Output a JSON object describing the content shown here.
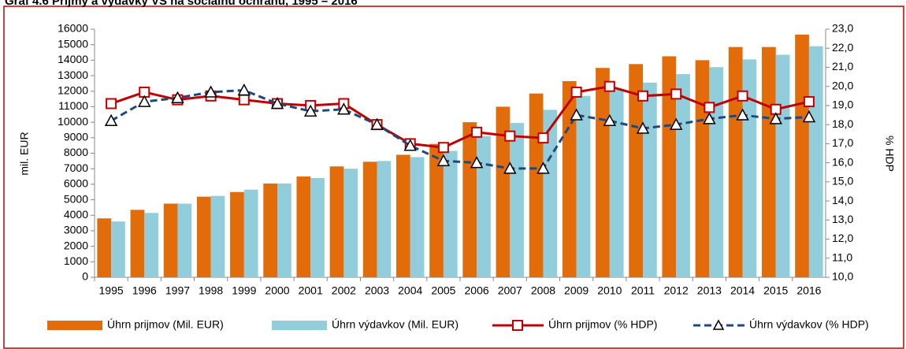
{
  "chart_data": {
    "type": "bar-line",
    "title": "Graf 4.6 Príjmy a výdavky VS na sociálnu ochranu, 1995 – 2016",
    "ylabel": "mil. EUR",
    "y2label": "% HDP",
    "categories": [
      "1995",
      "1996",
      "1997",
      "1998",
      "1999",
      "2000",
      "2001",
      "2002",
      "2003",
      "2004",
      "2005",
      "2006",
      "2007",
      "2008",
      "2009",
      "2010",
      "2011",
      "2012",
      "2013",
      "2014",
      "2015",
      "2016"
    ],
    "series": [
      {
        "name": "Úhrn prijmov (Mil. EUR)",
        "kind": "bar",
        "color": "#e36c0a",
        "values": [
          3800,
          4350,
          4750,
          5200,
          5500,
          6050,
          6500,
          7150,
          7450,
          7900,
          8600,
          10000,
          11000,
          11850,
          12650,
          13500,
          13750,
          14250,
          14000,
          14850,
          14850,
          15650
        ]
      },
      {
        "name": "Úhrn výdavkov (Mil. EUR)",
        "kind": "bar",
        "color": "#92cddc",
        "values": [
          3600,
          4150,
          4750,
          5250,
          5650,
          6050,
          6400,
          7000,
          7500,
          7750,
          8150,
          9100,
          9950,
          10800,
          11700,
          12100,
          12550,
          13100,
          13550,
          14050,
          14350,
          14900
        ]
      },
      {
        "name": "Úhrn prijmov (% HDP)",
        "kind": "line",
        "axis": "y2",
        "color": "#c00000",
        "marker": "square",
        "dashed": false,
        "values": [
          19.1,
          19.7,
          19.3,
          19.5,
          19.3,
          19.1,
          19.0,
          19.1,
          18.0,
          17.0,
          16.8,
          17.6,
          17.4,
          17.3,
          19.7,
          20.0,
          19.5,
          19.6,
          18.9,
          19.5,
          18.8,
          19.2
        ]
      },
      {
        "name": "Úhrn výdavkov (% HDP)",
        "kind": "line",
        "axis": "y2",
        "color": "#1f497d",
        "marker": "triangle",
        "dashed": true,
        "values": [
          18.2,
          19.2,
          19.4,
          19.7,
          19.8,
          19.1,
          18.7,
          18.8,
          18.0,
          16.9,
          16.1,
          16.0,
          15.7,
          15.7,
          18.5,
          18.2,
          17.8,
          18.0,
          18.3,
          18.5,
          18.3,
          18.4
        ]
      }
    ],
    "ylim": [
      0,
      16000
    ],
    "yticks": [
      0,
      1000,
      2000,
      3000,
      4000,
      5000,
      6000,
      7000,
      8000,
      9000,
      10000,
      11000,
      12000,
      13000,
      14000,
      15000,
      16000
    ],
    "y2lim": [
      10,
      23
    ],
    "y2ticks": [
      {
        "value": 10,
        "label": "10,0"
      },
      {
        "value": 11,
        "label": "11,0"
      },
      {
        "value": 12,
        "label": "12,0"
      },
      {
        "value": 13,
        "label": "13,0"
      },
      {
        "value": 14,
        "label": "14,0"
      },
      {
        "value": 15,
        "label": "15,0"
      },
      {
        "value": 16,
        "label": "16,0"
      },
      {
        "value": 17,
        "label": "17,0"
      },
      {
        "value": 18,
        "label": "18,0"
      },
      {
        "value": 19,
        "label": "19,0"
      },
      {
        "value": 20,
        "label": "20,0"
      },
      {
        "value": 21,
        "label": "21,0"
      },
      {
        "value": 22,
        "label": "22,0"
      },
      {
        "value": 23,
        "label": "23,0"
      }
    ],
    "grid": false,
    "legend": "bottom"
  }
}
